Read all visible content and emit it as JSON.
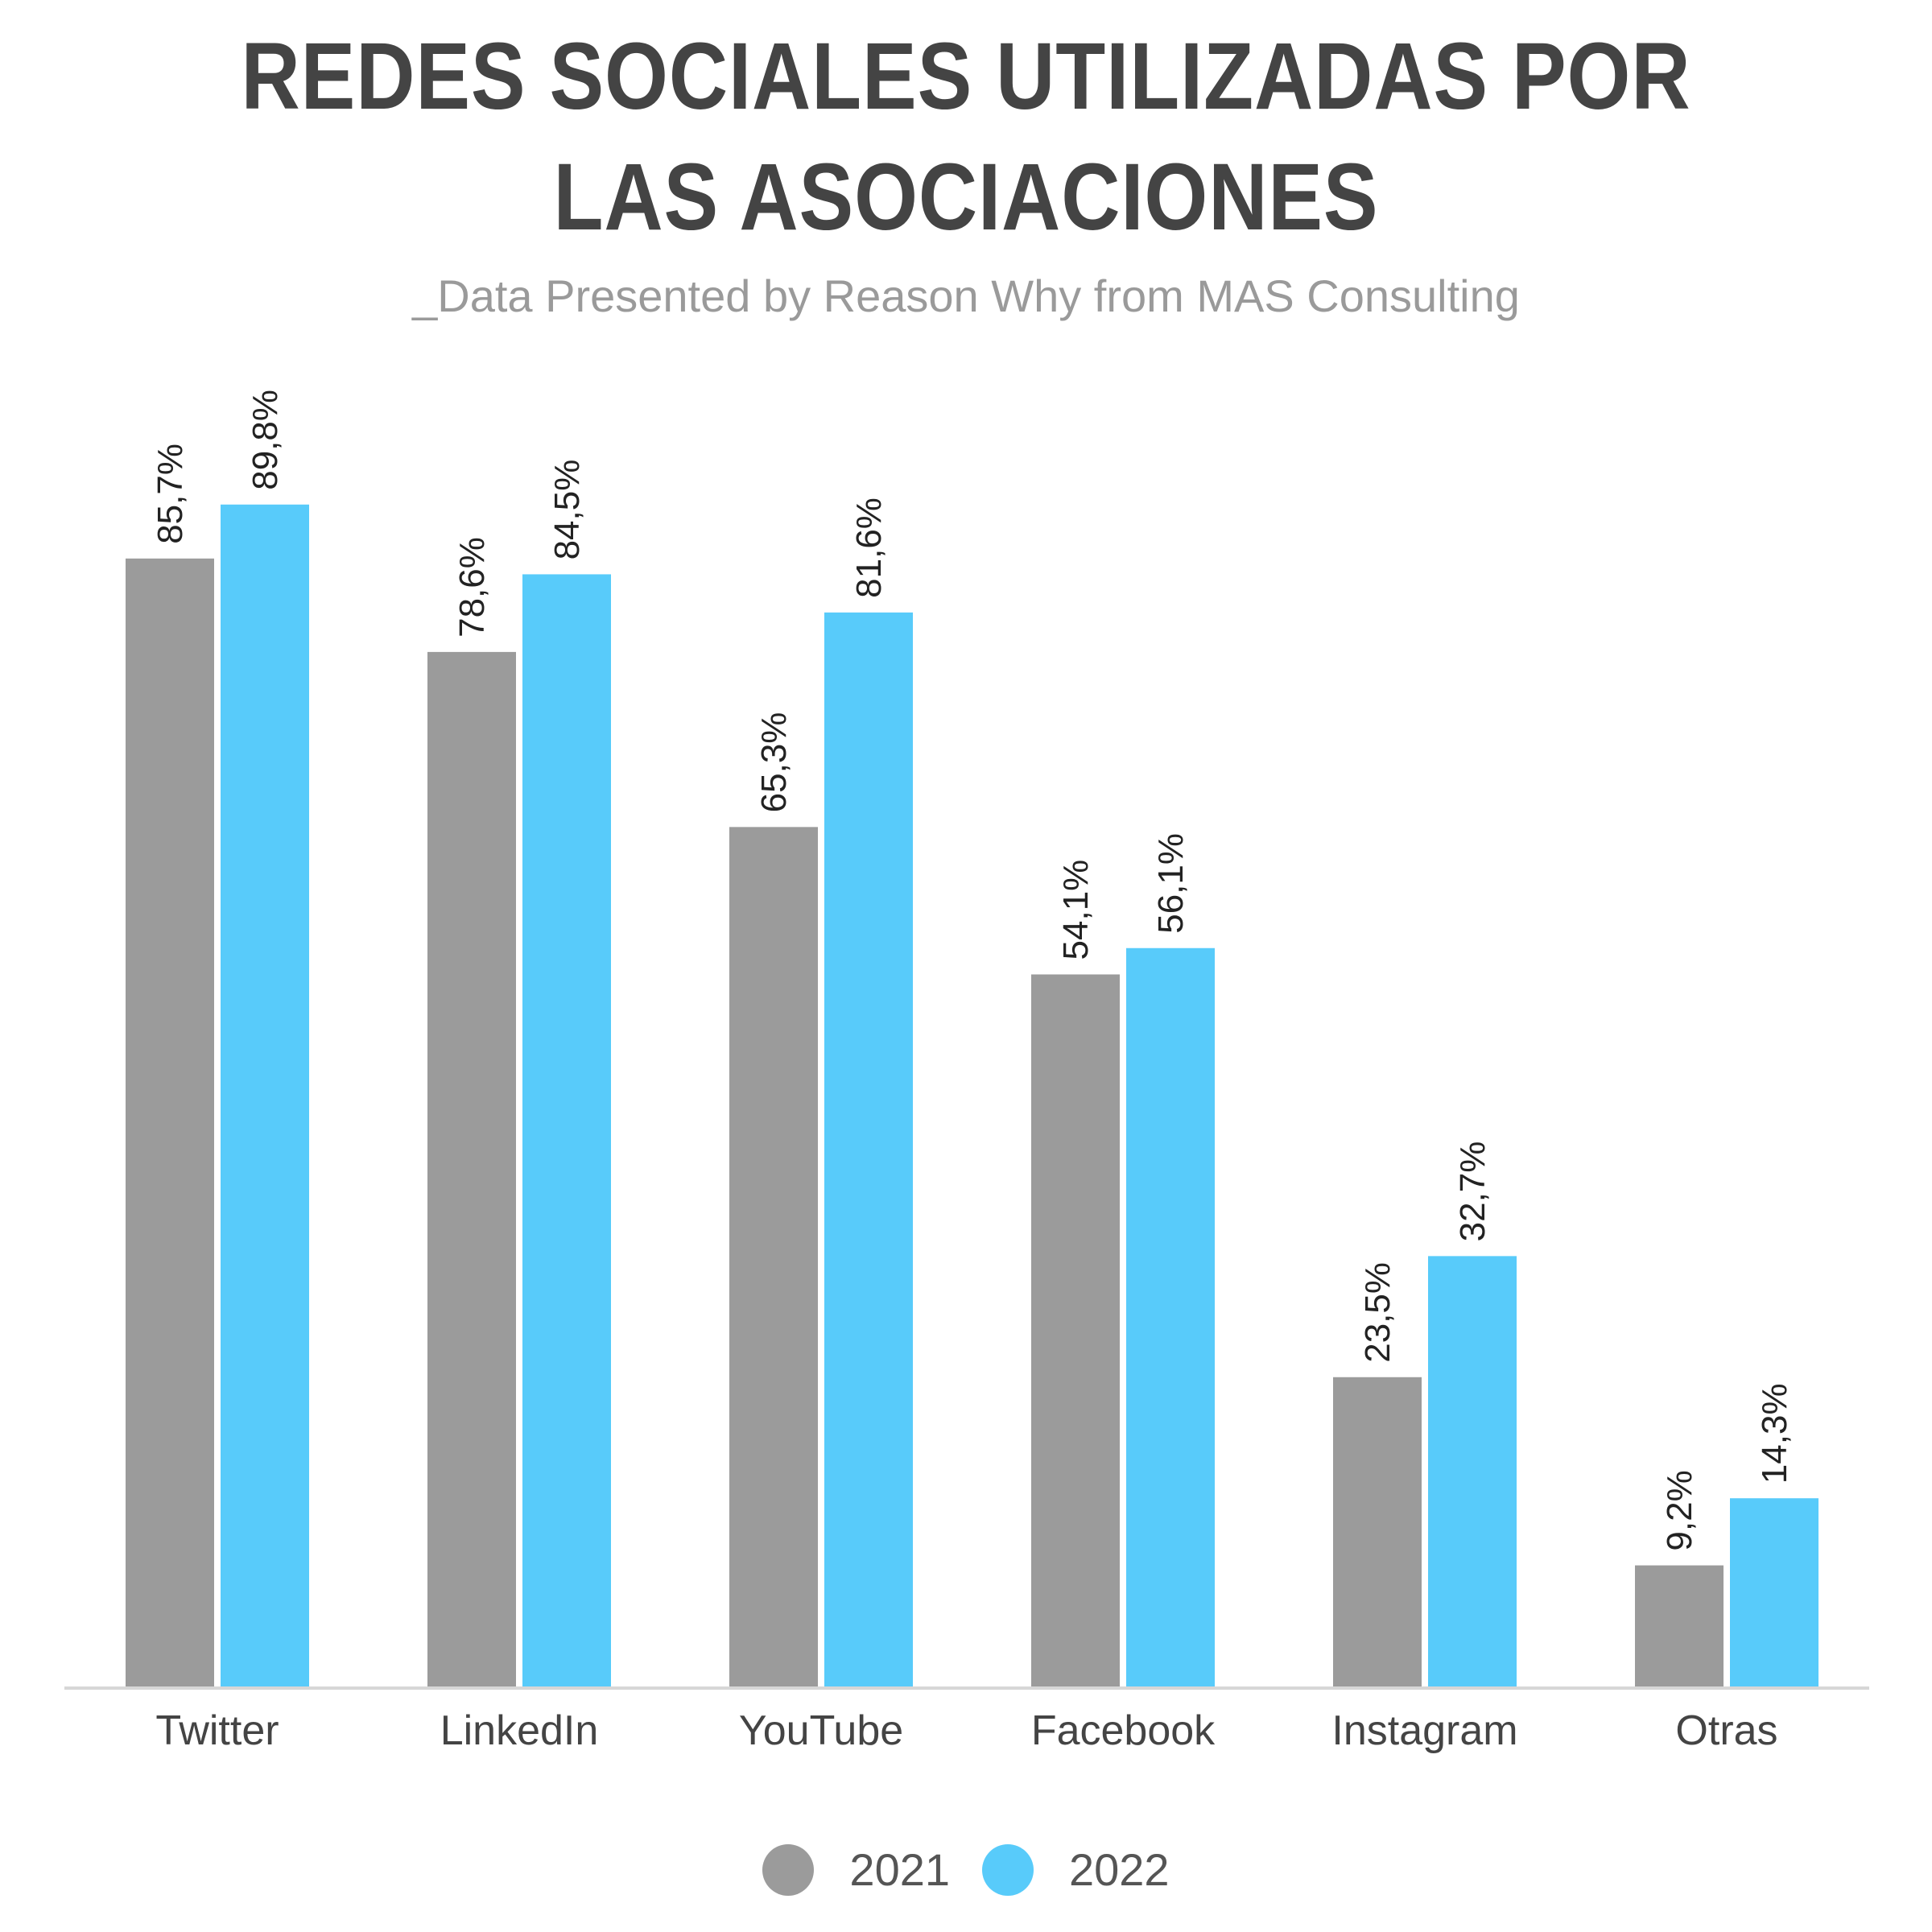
{
  "header": {
    "title_line1": "REDES SOCIALES UTILIZADAS POR",
    "title_line2": "LAS ASOCIACIONES",
    "subtitle": "_Data Presented by Reason Why from MAS Consulting"
  },
  "colors": {
    "series_2021": "#9b9b9b",
    "series_2022": "#58cbfa",
    "axis": "#d7d7d7",
    "text": "#444444"
  },
  "chart_data": {
    "type": "bar",
    "title": "REDES SOCIALES UTILIZADAS POR LAS ASOCIACIONES",
    "subtitle": "_Data Presented by Reason Why from MAS Consulting",
    "categories": [
      "Twitter",
      "LinkedIn",
      "YouTube",
      "Facebook",
      "Instagram",
      "Otras"
    ],
    "series": [
      {
        "name": "2021",
        "values": [
          85.7,
          78.6,
          65.3,
          54.1,
          23.5,
          9.2
        ],
        "labels": [
          "85,7%",
          "78,6%",
          "65,3%",
          "54,1%",
          "23,5%",
          "9,2%"
        ]
      },
      {
        "name": "2022",
        "values": [
          89.8,
          84.5,
          81.6,
          56.1,
          32.7,
          14.3
        ],
        "labels": [
          "89,8%",
          "84,5%",
          "81,6%",
          "56,1%",
          "32,7%",
          "14,3%"
        ]
      }
    ],
    "xlabel": "",
    "ylabel": "",
    "ylim": [
      0,
      100
    ],
    "grid": false,
    "legend": "bottom",
    "data_labels": "rotated-vertical"
  }
}
